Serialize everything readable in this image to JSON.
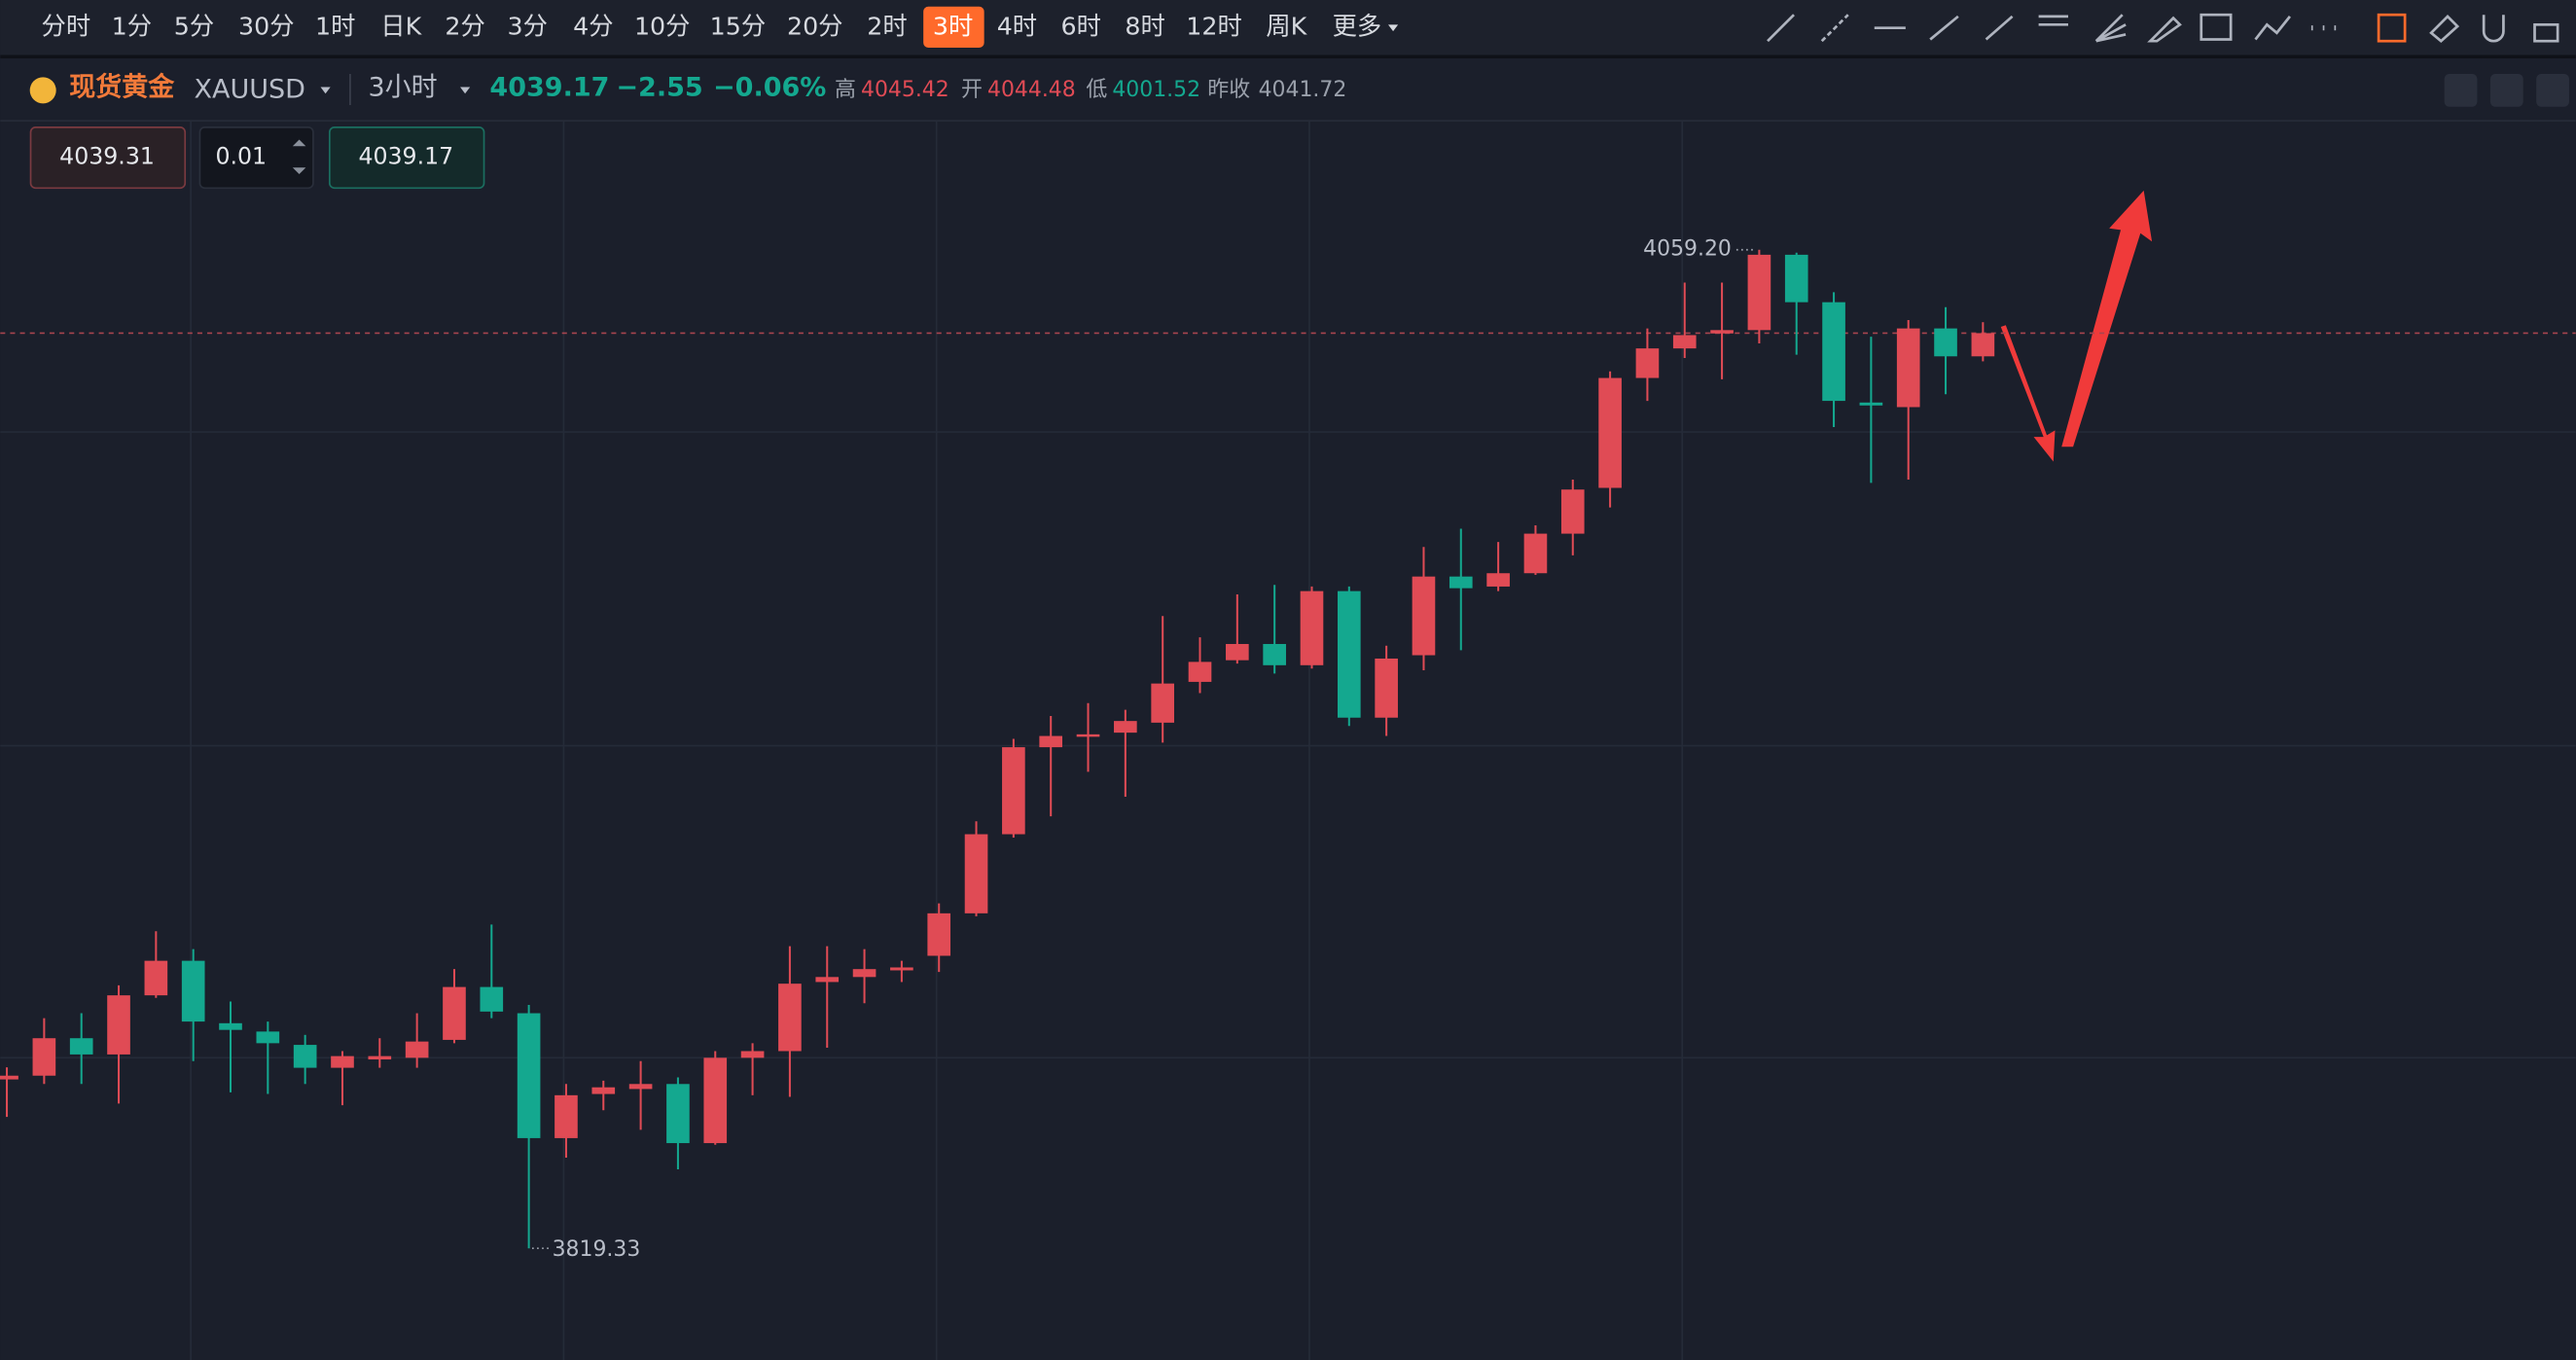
{
  "toolbar": {
    "intervals": [
      "分时",
      "1分",
      "5分",
      "30分",
      "1时",
      "日K",
      "2分",
      "3分",
      "4分",
      "10分",
      "15分",
      "20分",
      "2时",
      "3时",
      "4时",
      "6时",
      "8时",
      "12时",
      "周K",
      "更多"
    ],
    "active": 13
  },
  "header": {
    "name": "现货黄金",
    "symbol": "XAUUSD",
    "period": "3小时",
    "price": "4039.17",
    "change": "−2.55",
    "change_pct": "−0.06%",
    "high_label": "高",
    "high": "4045.42",
    "open_label": "开",
    "open": "4044.48",
    "low_label": "低",
    "low": "4001.52",
    "prev_label": "昨收",
    "prev_close": "4041.72"
  },
  "order": {
    "sell": "4039.31",
    "lots": "0.01",
    "buy": "4039.17"
  },
  "chart_data": {
    "type": "candlestick",
    "up_color": "#e04b55",
    "down_color": "#14a88f",
    "ylim": [
      3792.5,
      4090.0
    ],
    "grid": true,
    "open": [
      3859.9,
      3860.8,
      3869.8,
      3865.9,
      3880.1,
      3888.4,
      3873.4,
      3871.4,
      3868.2,
      3862.7,
      3864.7,
      3865.1,
      3869.4,
      3882.1,
      3875.8,
      3845.8,
      3856.4,
      3857.6,
      3858.8,
      3844.6,
      3865.1,
      3866.7,
      3883.3,
      3884.5,
      3886.1,
      3889.6,
      3899.8,
      3918.8,
      3939.7,
      3942.4,
      3943.2,
      3945.6,
      3955.4,
      3960.6,
      3964.5,
      3959.4,
      3977.2,
      3946.8,
      3961.8,
      3980.7,
      3978.3,
      3981.5,
      3991.0,
      4002.0,
      4028.4,
      4035.5,
      4039.1,
      4039.9,
      4058.0,
      4046.6,
      4022.5,
      4021.4,
      4040.3,
      4033.6
    ],
    "high": [
      3862.8,
      3874.6,
      3875.8,
      3882.5,
      3895.5,
      3891.2,
      3878.6,
      3873.8,
      3870.6,
      3866.7,
      3869.8,
      3875.8,
      3886.4,
      3897.1,
      3877.8,
      3858.8,
      3859.6,
      3864.3,
      3860.4,
      3866.7,
      3868.6,
      3891.9,
      3891.9,
      3891.2,
      3888.4,
      3902.2,
      3921.9,
      3941.7,
      3947.2,
      3950.3,
      3948.7,
      3971.2,
      3966.1,
      3976.4,
      3978.7,
      3978.3,
      3978.3,
      3964.1,
      3987.8,
      3992.2,
      3989.0,
      3993.0,
      4004.0,
      4030.0,
      4040.3,
      4051.3,
      4051.3,
      4059.2,
      4058.5,
      4049.0,
      4038.3,
      4042.3,
      4045.4,
      4041.8
    ],
    "low": [
      3850.9,
      3858.8,
      3858.8,
      3854.1,
      3879.5,
      3864.3,
      3856.8,
      3856.4,
      3858.8,
      3853.7,
      3862.7,
      3862.7,
      3868.6,
      3874.6,
      3819.33,
      3841.1,
      3852.5,
      3847.8,
      3838.3,
      3844.2,
      3856.1,
      3855.7,
      3867.5,
      3878.2,
      3883.3,
      3885.7,
      3899.1,
      3918.0,
      3923.1,
      3933.8,
      3927.8,
      3940.8,
      3952.7,
      3959.8,
      3957.4,
      3958.6,
      3944.8,
      3942.4,
      3958.2,
      3963.0,
      3977.2,
      3981.1,
      3985.8,
      3997.3,
      4022.9,
      4033.2,
      4028.1,
      4036.7,
      4034.0,
      4016.6,
      4003.2,
      4004.0,
      4024.5,
      4032.4
    ],
    "close": [
      3860.8,
      3869.8,
      3865.9,
      3880.1,
      3888.4,
      3873.8,
      3871.8,
      3868.6,
      3862.7,
      3865.5,
      3865.5,
      3869.0,
      3882.1,
      3876.2,
      3845.8,
      3856.1,
      3858.0,
      3858.8,
      3844.6,
      3865.1,
      3866.7,
      3882.9,
      3884.5,
      3886.4,
      3886.8,
      3899.8,
      3918.8,
      3939.7,
      3942.4,
      3942.8,
      3946.0,
      3955.0,
      3960.2,
      3964.5,
      3959.4,
      3977.2,
      3946.8,
      3961.0,
      3980.7,
      3977.9,
      3981.5,
      3991.0,
      4001.6,
      4028.4,
      4035.5,
      4038.7,
      4039.9,
      4058.0,
      4046.6,
      4022.9,
      4021.8,
      4040.3,
      4033.6,
      4039.17
    ],
    "max_label": {
      "value": 4059.2,
      "label": "4059.20"
    },
    "min_label": {
      "value": 3819.33,
      "label": "3819.33"
    }
  }
}
